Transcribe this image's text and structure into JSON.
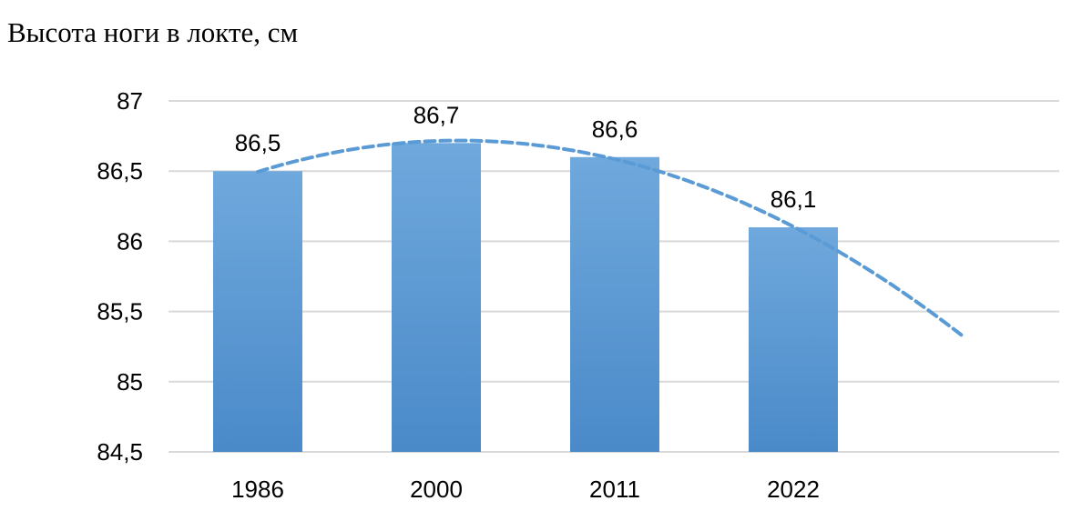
{
  "title": "Высота ноги в локте, см",
  "chart_data": {
    "type": "bar",
    "title": "Высота ноги в локте, см",
    "xlabel": "",
    "ylabel": "",
    "categories": [
      "1986",
      "2000",
      "2011",
      "2022"
    ],
    "values": [
      86.5,
      86.7,
      86.6,
      86.1
    ],
    "data_labels": [
      "86,5",
      "86,7",
      "86,6",
      "86,1"
    ],
    "ylim": [
      84.5,
      87
    ],
    "y_ticks": [
      84.5,
      85,
      85.5,
      86,
      86.5,
      87
    ],
    "y_tick_labels": [
      "84,5",
      "85",
      "85,5",
      "86",
      "86,5",
      "87"
    ],
    "grid": true,
    "legend": "none",
    "trendline": {
      "type": "polynomial",
      "style": "dashed",
      "extends_beyond_last_category": true
    },
    "colors": {
      "bar_top": "#6fa8dc",
      "bar_bottom": "#4a8ac9",
      "trendline": "#5b9bd5",
      "grid": "#d9d9d9"
    }
  }
}
